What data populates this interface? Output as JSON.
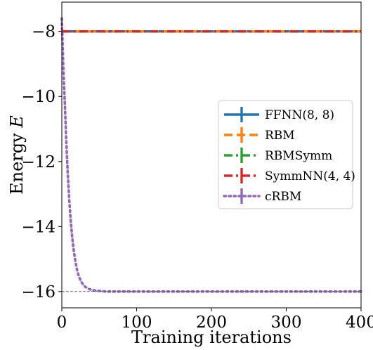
{
  "chart_data": {
    "type": "line",
    "xlabel": "Training iterations",
    "ylabel_prefix": "Energy ",
    "ylabel_symbol": "E",
    "xlim": [
      0,
      400
    ],
    "ylim": [
      -16.5,
      -7.1
    ],
    "xticks": [
      0,
      100,
      200,
      300,
      400
    ],
    "xtick_labels": [
      "0",
      "100",
      "200",
      "300",
      "400"
    ],
    "yticks": [
      -8,
      -10,
      -12,
      -14,
      -16
    ],
    "ytick_labels": [
      "−8",
      "−10",
      "−12",
      "−14",
      "−16"
    ],
    "reference_line": {
      "y": -16,
      "style": "dashed",
      "color": "#555555"
    },
    "grid": false,
    "legend_position": "center-right",
    "series": [
      {
        "name": "FFNN(8, 8)",
        "color": "#1f77b4",
        "dash": "solid",
        "x": [
          0,
          400
        ],
        "y": [
          -8,
          -8
        ]
      },
      {
        "name": "RBM",
        "color": "#ff7f0e",
        "dash": "dashed",
        "x": [
          0,
          400
        ],
        "y": [
          -8,
          -8
        ]
      },
      {
        "name": "RBMSymm",
        "color": "#2ca02c",
        "dash": "dashdot",
        "x": [
          0,
          400
        ],
        "y": [
          -8,
          -8
        ]
      },
      {
        "name": "SymmNN(4, 4)",
        "color": "#d62728",
        "dash": "dashdot",
        "x": [
          0,
          400
        ],
        "y": [
          -8,
          -8
        ]
      },
      {
        "name": "cRBM",
        "color": "#9467bd",
        "dash": "dotted",
        "x": [
          0,
          2,
          4,
          6,
          8,
          10,
          12,
          14,
          16,
          18,
          20,
          22,
          24,
          26,
          28,
          30,
          33,
          36,
          40,
          45,
          50,
          55,
          60,
          70,
          80,
          100,
          150,
          200,
          250,
          300,
          350,
          400
        ],
        "y": [
          -7.6,
          -9.1,
          -10.2,
          -11.4,
          -12.4,
          -13.2,
          -13.85,
          -14.35,
          -14.75,
          -15.05,
          -15.3,
          -15.48,
          -15.6,
          -15.7,
          -15.77,
          -15.83,
          -15.88,
          -15.92,
          -15.95,
          -15.97,
          -15.98,
          -15.99,
          -16.0,
          -16.0,
          -16.0,
          -16.0,
          -16.0,
          -16.0,
          -16.0,
          -16.0,
          -16.0,
          -16.0
        ]
      }
    ]
  }
}
